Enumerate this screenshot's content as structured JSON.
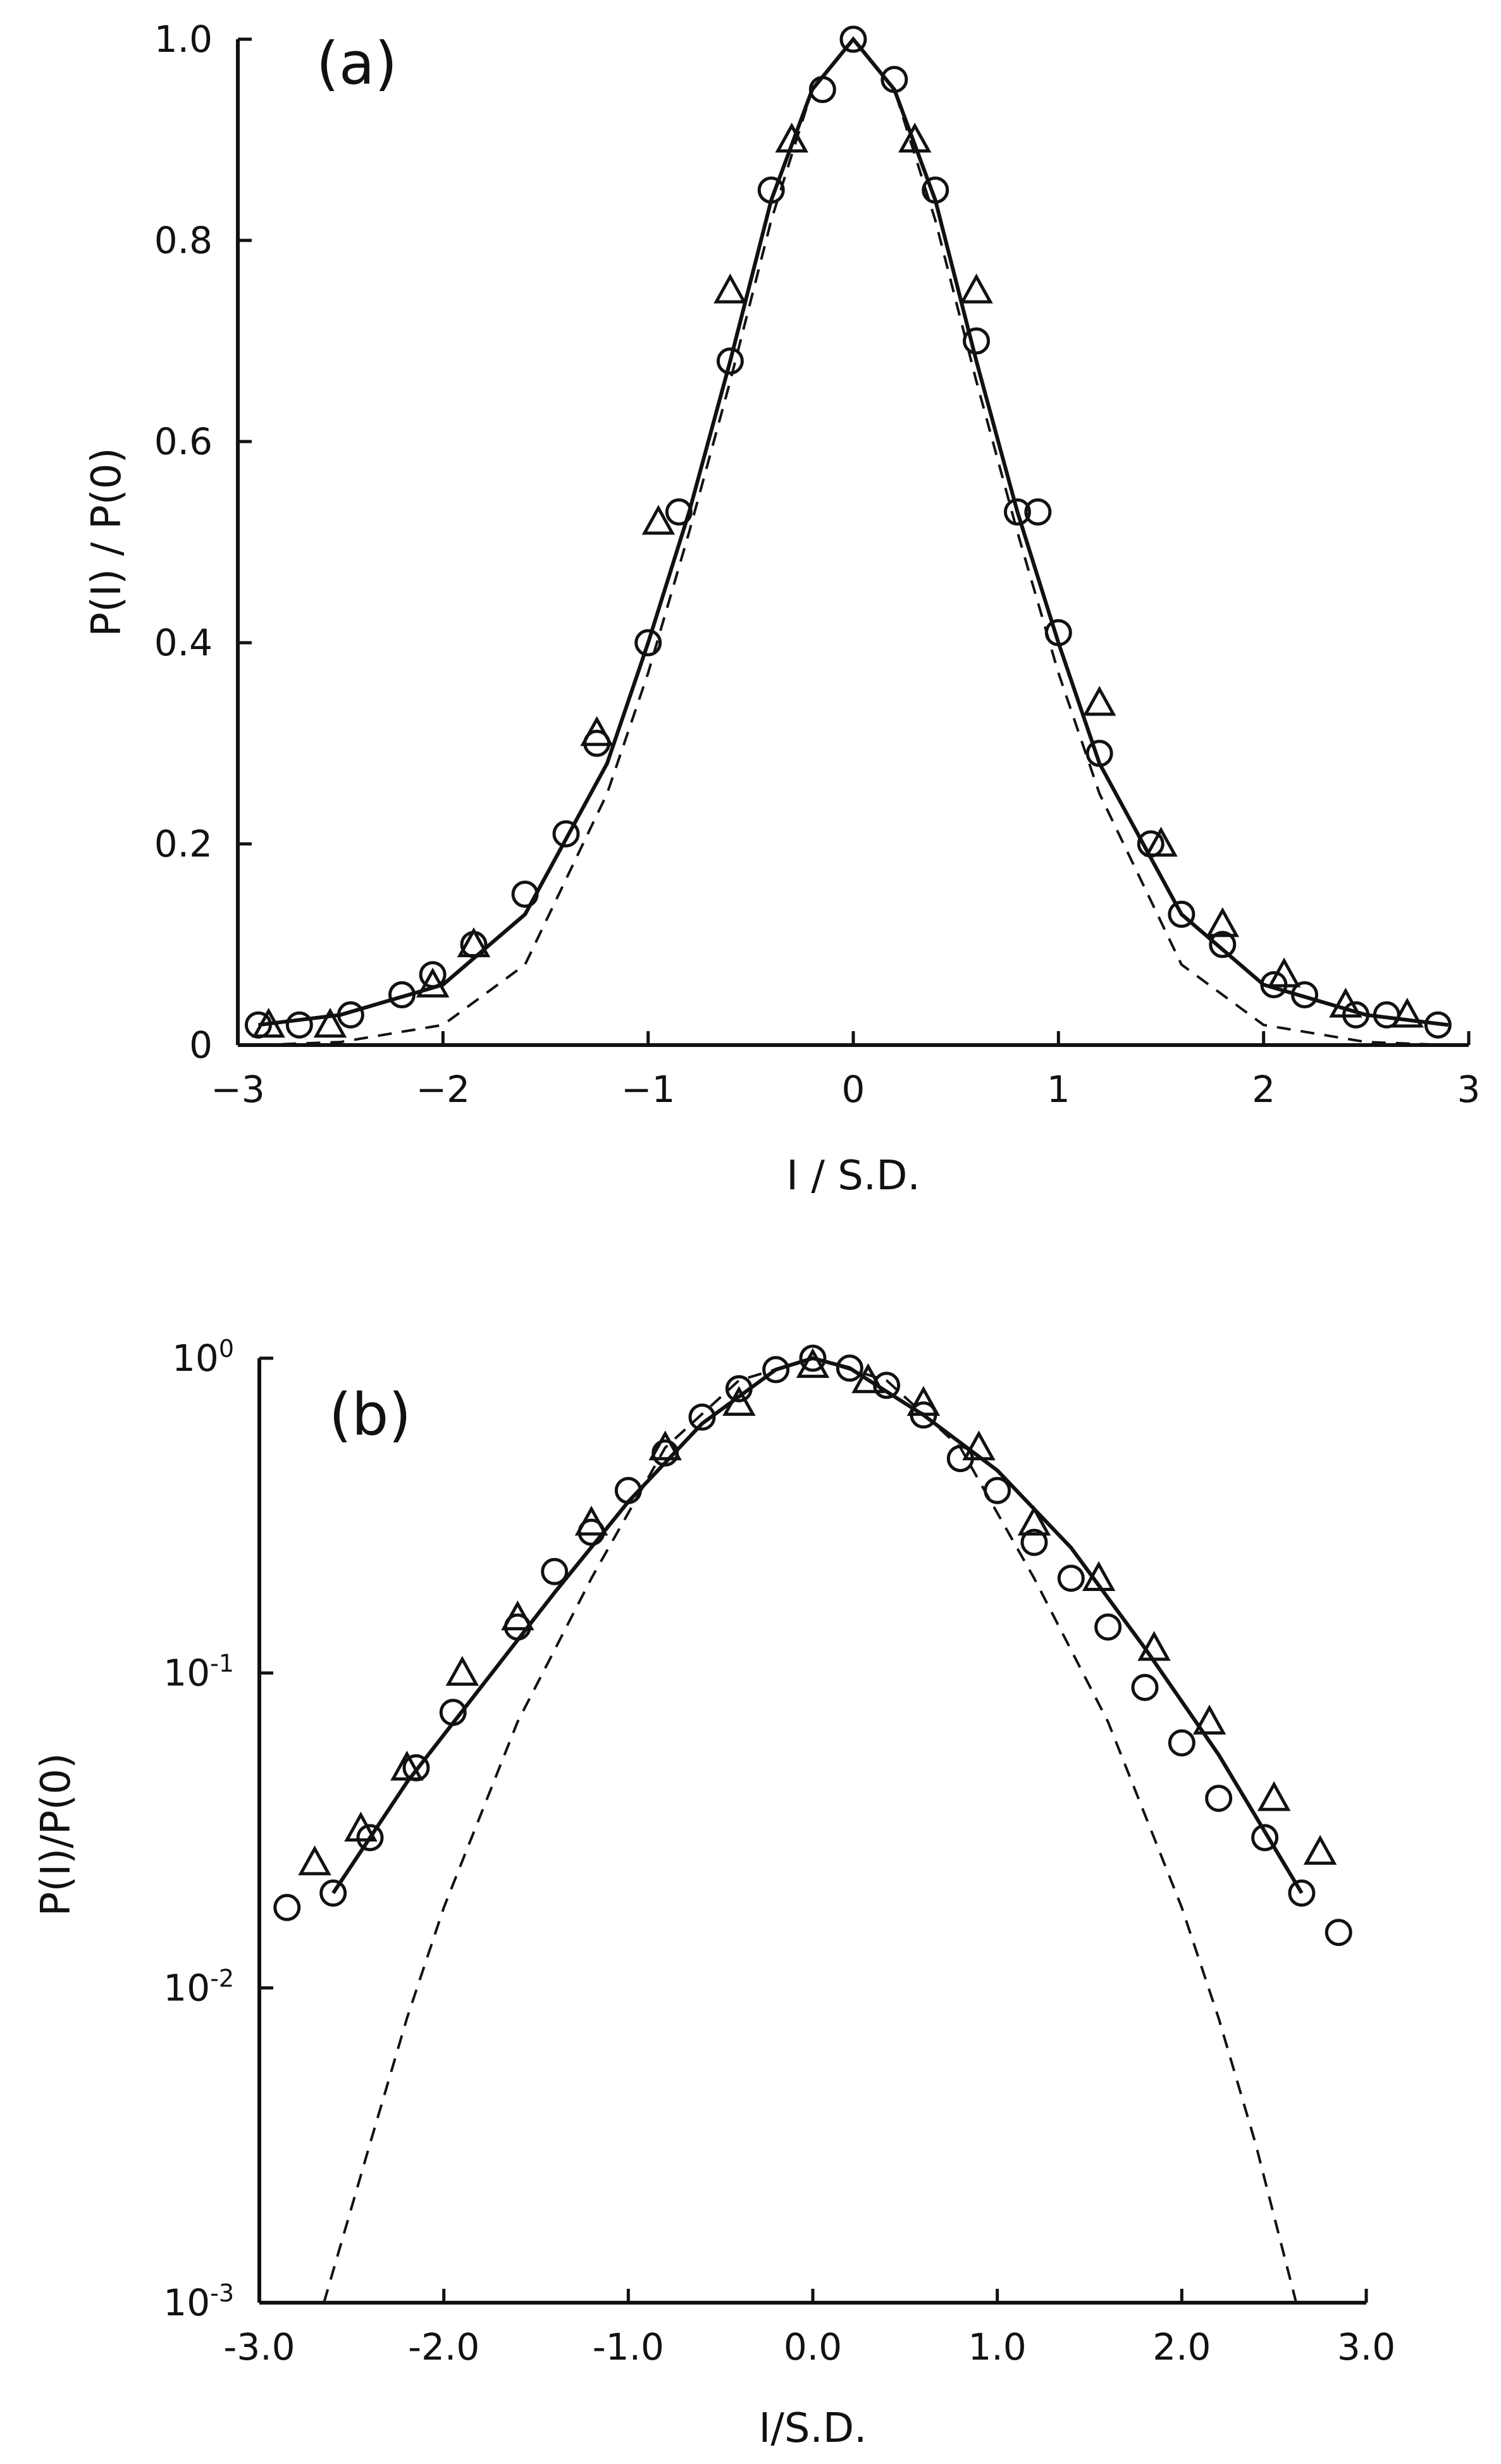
{
  "chart_data": [
    {
      "type": "scatter",
      "panel_label": "(a)",
      "xlabel": "I / S.D.",
      "ylabel": "P(I) / P(0)",
      "xlim": [
        -3,
        3
      ],
      "ylim": [
        0,
        1
      ],
      "yscale": "linear",
      "x_ticks": [
        -3,
        -2,
        -1,
        0,
        1,
        2,
        3
      ],
      "x_tick_labels": [
        "−3",
        "−2",
        "−1",
        "0",
        "1",
        "2",
        "3"
      ],
      "y_ticks": [
        0,
        0.2,
        0.4,
        0.6,
        0.8,
        1.0
      ],
      "y_tick_labels": [
        "0",
        "0.2",
        "0.4",
        "0.6",
        "0.8",
        "1.0"
      ],
      "series": [
        {
          "name": "circles",
          "marker": "circle",
          "x": [
            -2.9,
            -2.7,
            -2.45,
            -2.2,
            -2.05,
            -1.85,
            -1.6,
            -1.4,
            -1.25,
            -1.0,
            -0.85,
            -0.6,
            -0.4,
            -0.15,
            0.0,
            0.2,
            0.4,
            0.6,
            0.8,
            0.9,
            1.0,
            1.2,
            1.45,
            1.6,
            1.8,
            2.05,
            2.2,
            2.45,
            2.6,
            2.85
          ],
          "y": [
            0.02,
            0.02,
            0.03,
            0.05,
            0.07,
            0.1,
            0.15,
            0.21,
            0.3,
            0.4,
            0.53,
            0.68,
            0.85,
            0.95,
            1.0,
            0.96,
            0.85,
            0.7,
            0.53,
            0.53,
            0.41,
            0.29,
            0.2,
            0.13,
            0.1,
            0.06,
            0.05,
            0.03,
            0.03,
            0.02
          ]
        },
        {
          "name": "triangles",
          "marker": "triangle",
          "x": [
            -2.85,
            -2.55,
            -2.05,
            -1.85,
            -1.25,
            -0.95,
            -0.6,
            -0.3,
            0.3,
            0.6,
            1.2,
            1.5,
            1.8,
            2.1,
            2.4,
            2.7
          ],
          "y": [
            0.02,
            0.02,
            0.06,
            0.1,
            0.31,
            0.52,
            0.75,
            0.9,
            0.9,
            0.75,
            0.34,
            0.2,
            0.12,
            0.07,
            0.04,
            0.03
          ]
        },
        {
          "name": "fit",
          "style": "solid",
          "x": [
            -2.9,
            -2.5,
            -2.0,
            -1.6,
            -1.2,
            -1.0,
            -0.8,
            -0.6,
            -0.4,
            -0.2,
            0.0,
            0.2,
            0.4,
            0.6,
            0.8,
            1.0,
            1.2,
            1.6,
            2.0,
            2.5,
            2.9
          ],
          "y": [
            0.02,
            0.03,
            0.06,
            0.13,
            0.28,
            0.4,
            0.53,
            0.68,
            0.84,
            0.95,
            1.0,
            0.95,
            0.84,
            0.68,
            0.53,
            0.4,
            0.28,
            0.13,
            0.06,
            0.03,
            0.02
          ]
        },
        {
          "name": "gaussian",
          "style": "dashed",
          "x": [
            -2.9,
            -2.5,
            -2.0,
            -1.6,
            -1.2,
            -1.0,
            -0.8,
            -0.6,
            -0.4,
            -0.2,
            0.0,
            0.2,
            0.4,
            0.6,
            0.8,
            1.0,
            1.2,
            1.6,
            2.0,
            2.5,
            2.9
          ],
          "y": [
            0.0,
            0.003,
            0.02,
            0.08,
            0.25,
            0.37,
            0.51,
            0.66,
            0.82,
            0.95,
            1.0,
            0.95,
            0.82,
            0.66,
            0.51,
            0.37,
            0.25,
            0.08,
            0.02,
            0.003,
            0.0
          ]
        }
      ]
    },
    {
      "type": "scatter",
      "panel_label": "(b)",
      "xlabel": "I/S.D.",
      "ylabel": "P(I)/P(0)",
      "xlim": [
        -3,
        3
      ],
      "ylim": [
        0.001,
        1
      ],
      "yscale": "log",
      "x_ticks": [
        -3,
        -2,
        -1,
        0,
        1,
        2,
        3
      ],
      "x_tick_labels": [
        "-3.0",
        "-2.0",
        "-1.0",
        "0.0",
        "1.0",
        "2.0",
        "3.0"
      ],
      "y_ticks": [
        1,
        0.1,
        0.01,
        0.001
      ],
      "y_tick_labels": [
        {
          "base": "10",
          "exp": "0"
        },
        {
          "base": "10",
          "exp": "-1"
        },
        {
          "base": "10",
          "exp": "-2"
        },
        {
          "base": "10",
          "exp": "-3"
        }
      ],
      "series": [
        {
          "name": "circles",
          "marker": "circle",
          "x": [
            -2.85,
            -2.6,
            -2.4,
            -2.15,
            -1.95,
            -1.6,
            -1.4,
            -1.2,
            -1.0,
            -0.8,
            -0.6,
            -0.4,
            -0.2,
            0.0,
            0.2,
            0.4,
            0.6,
            0.8,
            1.0,
            1.2,
            1.4,
            1.6,
            1.8,
            2.0,
            2.2,
            2.45,
            2.65,
            2.85
          ],
          "y": [
            0.018,
            0.02,
            0.03,
            0.05,
            0.075,
            0.14,
            0.21,
            0.28,
            0.38,
            0.5,
            0.65,
            0.8,
            0.92,
            1.0,
            0.93,
            0.82,
            0.66,
            0.48,
            0.38,
            0.26,
            0.2,
            0.14,
            0.09,
            0.06,
            0.04,
            0.03,
            0.02,
            0.015
          ]
        },
        {
          "name": "triangles",
          "marker": "triangle",
          "x": [
            -2.7,
            -2.45,
            -2.2,
            -1.9,
            -1.6,
            -1.2,
            -0.8,
            -0.4,
            0.0,
            0.3,
            0.6,
            0.9,
            1.2,
            1.55,
            1.85,
            2.15,
            2.5,
            2.75
          ],
          "y": [
            0.025,
            0.032,
            0.05,
            0.1,
            0.15,
            0.3,
            0.52,
            0.72,
            0.95,
            0.85,
            0.72,
            0.52,
            0.3,
            0.2,
            0.12,
            0.07,
            0.04,
            0.027
          ]
        },
        {
          "name": "fit",
          "style": "solid",
          "x": [
            -2.6,
            -2.2,
            -1.8,
            -1.4,
            -1.0,
            -0.6,
            -0.2,
            0.0,
            0.2,
            0.6,
            1.0,
            1.4,
            1.8,
            2.2,
            2.65
          ],
          "y": [
            0.02,
            0.045,
            0.09,
            0.18,
            0.35,
            0.62,
            0.92,
            1.0,
            0.93,
            0.66,
            0.44,
            0.25,
            0.12,
            0.055,
            0.02
          ]
        },
        {
          "name": "gaussian",
          "style": "dashed",
          "x": [
            -2.65,
            -2.4,
            -2.2,
            -2.0,
            -1.6,
            -1.2,
            -0.8,
            -0.4,
            0.0,
            0.4,
            0.8,
            1.2,
            1.6,
            2.0,
            2.2,
            2.4,
            2.62
          ],
          "y": [
            0.001,
            0.0032,
            0.008,
            0.018,
            0.07,
            0.2,
            0.52,
            0.85,
            1.0,
            0.85,
            0.52,
            0.2,
            0.07,
            0.018,
            0.008,
            0.0032,
            0.001
          ]
        }
      ]
    }
  ]
}
